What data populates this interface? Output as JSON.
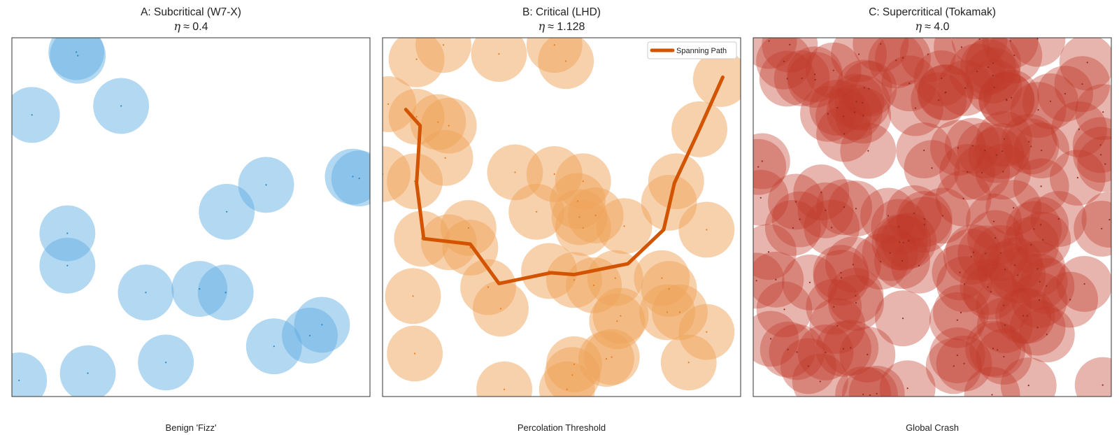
{
  "chart_data": [
    {
      "type": "scatter",
      "title": "A: Subcritical (W7-X)",
      "eta_symbol": "η",
      "eta_value": "≈ 0.4",
      "caption": "Benign 'Fizz'",
      "color": "#5DADE2",
      "dot_color": "#2E86C1",
      "opacity": 0.47,
      "xlim": [
        0,
        1
      ],
      "ylim": [
        0,
        1
      ],
      "radius": 0.078,
      "points": [
        {
          "x": 0.18,
          "y": 0.96
        },
        {
          "x": 0.184,
          "y": 0.95
        },
        {
          "x": 0.056,
          "y": 0.785
        },
        {
          "x": 0.305,
          "y": 0.81
        },
        {
          "x": 0.71,
          "y": 0.59
        },
        {
          "x": 0.6,
          "y": 0.515
        },
        {
          "x": 0.952,
          "y": 0.613
        },
        {
          "x": 0.97,
          "y": 0.608
        },
        {
          "x": 0.155,
          "y": 0.455
        },
        {
          "x": 0.155,
          "y": 0.365
        },
        {
          "x": 0.374,
          "y": 0.29
        },
        {
          "x": 0.524,
          "y": 0.3
        },
        {
          "x": 0.597,
          "y": 0.29
        },
        {
          "x": 0.866,
          "y": 0.2
        },
        {
          "x": 0.832,
          "y": 0.17
        },
        {
          "x": 0.732,
          "y": 0.14
        },
        {
          "x": 0.02,
          "y": 0.045
        },
        {
          "x": 0.212,
          "y": 0.065
        },
        {
          "x": 0.43,
          "y": 0.095
        }
      ]
    },
    {
      "type": "scatter",
      "title": "B: Critical (LHD)",
      "eta_symbol": "η",
      "eta_value": "≈ 1.128",
      "caption": "Percolation Threshold",
      "color": "#F0A35A",
      "dot_color": "#E67E22",
      "opacity": 0.5,
      "xlim": [
        0,
        1
      ],
      "ylim": [
        0,
        1
      ],
      "radius": 0.078,
      "legend": {
        "label": "Spanning Path",
        "color": "#D35400",
        "position": "top-right"
      },
      "points": [
        {
          "x": 0.17,
          "y": 0.98
        },
        {
          "x": 0.325,
          "y": 0.955
        },
        {
          "x": 0.48,
          "y": 0.98
        },
        {
          "x": 0.512,
          "y": 0.935
        },
        {
          "x": 0.095,
          "y": 0.94
        },
        {
          "x": 0.016,
          "y": 0.815
        },
        {
          "x": 0.095,
          "y": 0.78
        },
        {
          "x": 0.155,
          "y": 0.765
        },
        {
          "x": 0.185,
          "y": 0.755
        },
        {
          "x": 0.175,
          "y": 0.665
        },
        {
          "x": 0.09,
          "y": 0.6
        },
        {
          "x": 0.0,
          "y": 0.62
        },
        {
          "x": 0.945,
          "y": 0.885
        },
        {
          "x": 0.885,
          "y": 0.745
        },
        {
          "x": 0.82,
          "y": 0.6
        },
        {
          "x": 0.8,
          "y": 0.54
        },
        {
          "x": 0.905,
          "y": 0.465
        },
        {
          "x": 0.37,
          "y": 0.625
        },
        {
          "x": 0.48,
          "y": 0.62
        },
        {
          "x": 0.56,
          "y": 0.6
        },
        {
          "x": 0.545,
          "y": 0.545
        },
        {
          "x": 0.43,
          "y": 0.515
        },
        {
          "x": 0.55,
          "y": 0.5
        },
        {
          "x": 0.56,
          "y": 0.47
        },
        {
          "x": 0.595,
          "y": 0.505
        },
        {
          "x": 0.675,
          "y": 0.475
        },
        {
          "x": 0.24,
          "y": 0.47
        },
        {
          "x": 0.11,
          "y": 0.44
        },
        {
          "x": 0.185,
          "y": 0.43
        },
        {
          "x": 0.245,
          "y": 0.415
        },
        {
          "x": 0.465,
          "y": 0.35
        },
        {
          "x": 0.535,
          "y": 0.325
        },
        {
          "x": 0.59,
          "y": 0.31
        },
        {
          "x": 0.65,
          "y": 0.33
        },
        {
          "x": 0.295,
          "y": 0.305
        },
        {
          "x": 0.33,
          "y": 0.245
        },
        {
          "x": 0.78,
          "y": 0.33
        },
        {
          "x": 0.8,
          "y": 0.3
        },
        {
          "x": 0.795,
          "y": 0.235
        },
        {
          "x": 0.655,
          "y": 0.21
        },
        {
          "x": 0.665,
          "y": 0.225
        },
        {
          "x": 0.83,
          "y": 0.235
        },
        {
          "x": 0.905,
          "y": 0.18
        },
        {
          "x": 0.085,
          "y": 0.28
        },
        {
          "x": 0.09,
          "y": 0.12
        },
        {
          "x": 0.535,
          "y": 0.09
        },
        {
          "x": 0.53,
          "y": 0.06
        },
        {
          "x": 0.625,
          "y": 0.105
        },
        {
          "x": 0.64,
          "y": 0.11
        },
        {
          "x": 0.855,
          "y": 0.095
        },
        {
          "x": 0.34,
          "y": 0.02
        },
        {
          "x": 0.515,
          "y": 0.02
        }
      ],
      "path": [
        {
          "x": 0.065,
          "y": 0.8
        },
        {
          "x": 0.105,
          "y": 0.755
        },
        {
          "x": 0.095,
          "y": 0.595
        },
        {
          "x": 0.115,
          "y": 0.44
        },
        {
          "x": 0.245,
          "y": 0.425
        },
        {
          "x": 0.325,
          "y": 0.315
        },
        {
          "x": 0.47,
          "y": 0.345
        },
        {
          "x": 0.535,
          "y": 0.34
        },
        {
          "x": 0.685,
          "y": 0.37
        },
        {
          "x": 0.785,
          "y": 0.465
        },
        {
          "x": 0.815,
          "y": 0.595
        },
        {
          "x": 0.885,
          "y": 0.745
        },
        {
          "x": 0.95,
          "y": 0.89
        }
      ]
    },
    {
      "type": "scatter",
      "title": "C: Supercritical (Tokamak)",
      "eta_symbol": "η",
      "eta_value": "≈ 4.0",
      "caption": "Global Crash",
      "color": "#C0392B",
      "dot_color": "#922B21",
      "opacity": 0.38,
      "xlim": [
        0,
        1
      ],
      "ylim": [
        0,
        1
      ],
      "radius": 0.078,
      "points": []
    }
  ]
}
